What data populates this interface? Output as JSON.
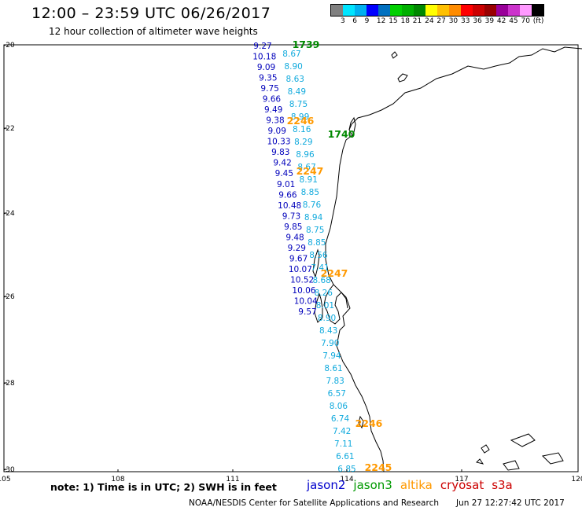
{
  "header": {
    "title": "12:00 – 23:59 UTC 06/26/2017",
    "subtitle": "12 hour collection of altimeter wave heights"
  },
  "colorbar": {
    "colors": [
      "#808080",
      "#00e5ff",
      "#00b0f0",
      "#0000ff",
      "#0070c0",
      "#00d000",
      "#00b000",
      "#008800",
      "#ffff00",
      "#ffc000",
      "#ff8c00",
      "#ff0000",
      "#cc0000",
      "#990000",
      "#990099",
      "#cc33cc",
      "#ff99ff",
      "#000000"
    ],
    "labels": [
      "3",
      "6",
      "9",
      "12",
      "15",
      "18",
      "21",
      "24",
      "27",
      "30",
      "33",
      "36",
      "39",
      "42",
      "45",
      "70",
      "(ft)"
    ]
  },
  "axes": {
    "x_labels": [
      "105",
      "108",
      "111",
      "114",
      "117",
      "120"
    ],
    "y_labels": [
      "-20",
      "-22",
      "-24",
      "-26",
      "-28",
      "-30"
    ]
  },
  "tracks": [
    {
      "satellite": "jason2",
      "color": "#0000bb",
      "values": [
        "9.27",
        "10.18",
        "9.09",
        "9.35",
        "9.75",
        "9.66",
        "9.49",
        "9.38",
        "9.09",
        "10.33",
        "9.83",
        "9.42",
        "9.45",
        "9.01",
        "9.66",
        "10.48",
        "9.73",
        "9.85",
        "9.48",
        "9.29",
        "9.67",
        "10.07",
        "10.52",
        "10.06",
        "10.04",
        "9.57"
      ]
    },
    {
      "satellite": "jason3",
      "color": "#11aadd",
      "values": [
        "8.67",
        "8.90",
        "8.63",
        "8.49",
        "8.75",
        "8.99",
        "8.16",
        "8.29",
        "8.96",
        "8.67",
        "8.91",
        "8.85",
        "8.76",
        "8.94",
        "8.75",
        "8.85",
        "8.56",
        "7.41",
        "8.68",
        "8.26",
        "8.01",
        "8.90",
        "8.43",
        "7.90",
        "7.94",
        "8.61",
        "7.83",
        "6.57",
        "8.06",
        "6.74",
        "7.42",
        "7.11",
        "6.61",
        "6.85"
      ]
    }
  ],
  "time_labels": [
    {
      "text": "1739",
      "color": "#008800"
    },
    {
      "text": "1740",
      "color": "#008800"
    },
    {
      "text": "2246",
      "color": "#ff9900"
    },
    {
      "text": "2247",
      "color": "#ff9900"
    },
    {
      "text": "2247",
      "color": "#ff9900"
    },
    {
      "text": "2246",
      "color": "#ff9900"
    },
    {
      "text": "2245",
      "color": "#ff9900"
    }
  ],
  "note": "note: 1) Time is in UTC; 2) SWH is in feet",
  "legend": [
    {
      "name": "jason2",
      "color": "#0000cc"
    },
    {
      "name": "jason3",
      "color": "#009900"
    },
    {
      "name": "altika",
      "color": "#ff9900"
    },
    {
      "name": "cryosat",
      "color": "#cc0000"
    },
    {
      "name": "s3a",
      "color": "#cc0000"
    }
  ],
  "footer": {
    "credit": "NOAA/NESDIS Center for Satellite Applications and Research",
    "timestamp": "Jun 27 12:27:42 UTC 2017"
  }
}
